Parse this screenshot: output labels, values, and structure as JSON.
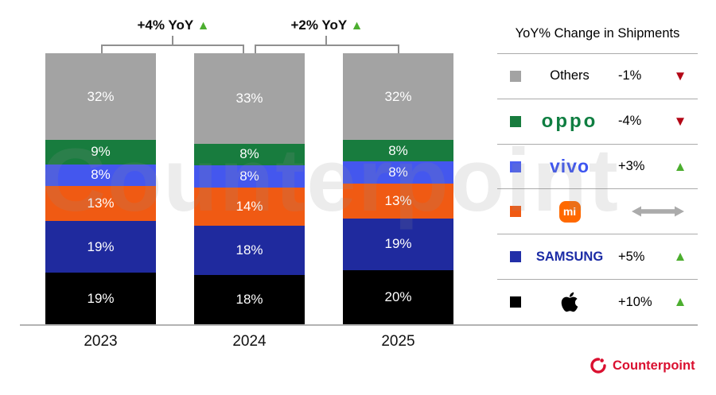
{
  "watermark": "Counterpoint",
  "colors": {
    "others": "#a3a3a3",
    "oppo": "#187c3e",
    "vivo": "#4457ee",
    "mi": "#f05a13",
    "samsung": "#1f2a9e",
    "apple": "#000000",
    "up": "#4cae2f",
    "down": "#b30716",
    "flat": "#ababab",
    "axis": "#b3b3b3",
    "bracket": "#909090",
    "counterpoint_red": "#da1030"
  },
  "icons": {
    "up": "▲",
    "down": "▼"
  },
  "chart_data": {
    "type": "bar",
    "stacked": true,
    "unit": "%",
    "categories": [
      "2023",
      "2024",
      "2025"
    ],
    "series": [
      {
        "name": "Apple",
        "color_key": "apple",
        "values": [
          19,
          18,
          20
        ]
      },
      {
        "name": "Samsung",
        "color_key": "samsung",
        "values": [
          19,
          18,
          19
        ]
      },
      {
        "name": "Xiaomi",
        "color_key": "mi",
        "values": [
          13,
          14,
          13
        ]
      },
      {
        "name": "vivo",
        "color_key": "vivo",
        "values": [
          8,
          8,
          8
        ]
      },
      {
        "name": "OPPO",
        "color_key": "oppo",
        "values": [
          9,
          8,
          8
        ]
      },
      {
        "name": "Others",
        "color_key": "others",
        "values": [
          32,
          33,
          32
        ]
      }
    ],
    "annotations": [
      {
        "label": "+4% YoY",
        "direction": "up",
        "between": [
          "2023",
          "2024"
        ]
      },
      {
        "label": "+2% YoY",
        "direction": "up",
        "between": [
          "2024",
          "2025"
        ]
      }
    ],
    "legend_position": "right",
    "grid": false
  },
  "legend": {
    "title": "YoY% Change in Shipments",
    "rows": [
      {
        "brand": "Others",
        "display": "Others",
        "value": "-1%",
        "direction": "down"
      },
      {
        "brand": "OPPO",
        "display": "oppo",
        "value": "-4%",
        "direction": "down"
      },
      {
        "brand": "vivo",
        "display": "vivo",
        "value": "+3%",
        "direction": "up"
      },
      {
        "brand": "Xiaomi",
        "display": "mi",
        "value": "",
        "direction": "flat"
      },
      {
        "brand": "Samsung",
        "display": "SAMSUNG",
        "value": "+5%",
        "direction": "up"
      },
      {
        "brand": "Apple",
        "display": "",
        "value": "+10%",
        "direction": "up"
      }
    ]
  },
  "footer": {
    "brand": "Counterpoint"
  }
}
